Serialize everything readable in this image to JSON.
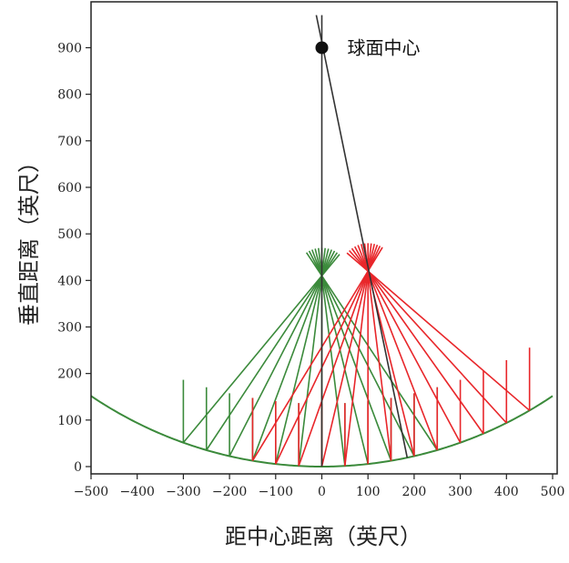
{
  "chart_data": {
    "type": "diagram",
    "xlabel": "距中心距离（英尺）",
    "ylabel": "垂直距离（英尺）",
    "xlim": [
      -500,
      500
    ],
    "ylim": [
      -20,
      970
    ],
    "x_ticks": [
      "−500",
      "−400",
      "−300",
      "−200",
      "−100",
      "0",
      "100",
      "200",
      "300",
      "400",
      "500"
    ],
    "y_ticks": [
      "0",
      "100",
      "200",
      "300",
      "400",
      "500",
      "600",
      "700",
      "800",
      "900"
    ],
    "grid": false,
    "sphere_center": {
      "label": "球面中心",
      "x": 0,
      "y": 900
    },
    "mirror": {
      "radius": 900,
      "x_range": [
        -500,
        500
      ],
      "color": "#3b8a3b"
    },
    "green_focus": {
      "x": 0,
      "y": 410
    },
    "red_focus": {
      "x": 100,
      "y": 420
    },
    "green_rays_x": [
      -300,
      -250,
      -200,
      -150,
      -100,
      -50,
      0,
      50,
      100,
      150,
      200,
      250
    ],
    "red_rays_x": [
      -150,
      -100,
      -50,
      0,
      50,
      100,
      150,
      200,
      250,
      300,
      350,
      400,
      450
    ],
    "colors": {
      "green": "#3b8a3b",
      "red": "#e8262a",
      "axis": "#222222",
      "line": "#333333"
    }
  }
}
